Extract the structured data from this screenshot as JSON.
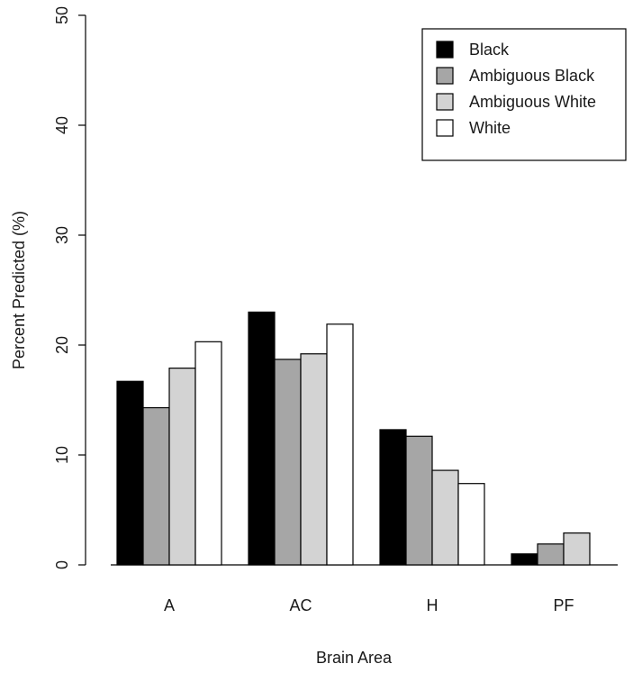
{
  "chart_data": {
    "type": "bar",
    "title": "",
    "xlabel": "Brain Area",
    "ylabel": "Percent Predicted (%)",
    "ylim": [
      0,
      50
    ],
    "yticks": [
      "0",
      "10",
      "20",
      "30",
      "40",
      "50"
    ],
    "categories": [
      "A",
      "AC",
      "H",
      "PF"
    ],
    "series": [
      {
        "name": "Black",
        "color": "#000000",
        "values": [
          16.7,
          23.0,
          12.3,
          1.0
        ]
      },
      {
        "name": "Ambiguous Black",
        "color": "#a6a6a6",
        "values": [
          14.3,
          18.7,
          11.7,
          1.9
        ]
      },
      {
        "name": "Ambiguous White",
        "color": "#d3d3d3",
        "values": [
          17.9,
          19.2,
          8.6,
          2.9
        ]
      },
      {
        "name": "White",
        "color": "#ffffff",
        "values": [
          20.3,
          21.9,
          7.4,
          0.0
        ]
      }
    ],
    "legend_position": "top-right",
    "grid": false
  }
}
